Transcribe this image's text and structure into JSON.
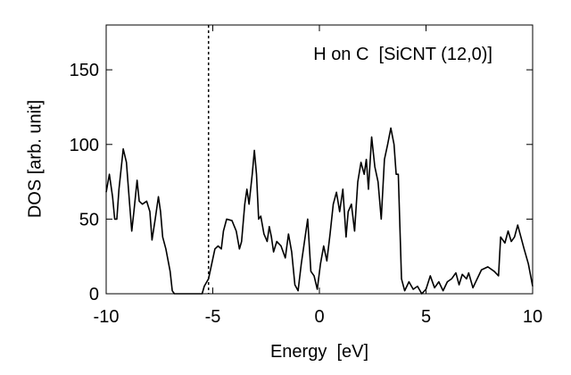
{
  "chart_data": {
    "type": "line",
    "annotation": "H on C  [SiCNT (12,0)]",
    "xlabel": "Energy  [eV]",
    "ylabel": "DOS [arb. unit]",
    "xlim": [
      -10,
      10
    ],
    "ylim": [
      0,
      180
    ],
    "xticks": [
      -10,
      -5,
      0,
      5,
      10
    ],
    "yticks": [
      0,
      50,
      100,
      150
    ],
    "vline": -5.2,
    "series": [
      {
        "name": "DOS",
        "color": "#000000",
        "x": [
          -10,
          -9.85,
          -9.7,
          -9.6,
          -9.5,
          -9.4,
          -9.2,
          -9.05,
          -8.9,
          -8.8,
          -8.7,
          -8.55,
          -8.45,
          -8.3,
          -8.1,
          -7.95,
          -7.85,
          -7.7,
          -7.55,
          -7.45,
          -7.35,
          -7.2,
          -7.0,
          -6.9,
          -6.8,
          -6.0,
          -5.5,
          -5.4,
          -5.2,
          -5.05,
          -4.9,
          -4.75,
          -4.6,
          -4.5,
          -4.35,
          -4.1,
          -3.9,
          -3.75,
          -3.65,
          -3.5,
          -3.4,
          -3.3,
          -3.15,
          -3.05,
          -2.95,
          -2.85,
          -2.75,
          -2.6,
          -2.45,
          -2.35,
          -2.25,
          -2.15,
          -2.0,
          -1.8,
          -1.6,
          -1.45,
          -1.3,
          -1.15,
          -1.0,
          -0.85,
          -0.7,
          -0.55,
          -0.4,
          -0.25,
          -0.1,
          0.05,
          0.2,
          0.35,
          0.5,
          0.65,
          0.8,
          0.95,
          1.1,
          1.25,
          1.35,
          1.5,
          1.65,
          1.8,
          1.95,
          2.1,
          2.2,
          2.3,
          2.45,
          2.6,
          2.75,
          2.9,
          3.05,
          3.2,
          3.35,
          3.5,
          3.6,
          3.7,
          3.85,
          4.0,
          4.2,
          4.4,
          4.6,
          4.8,
          5.0,
          5.2,
          5.4,
          5.6,
          5.8,
          6.0,
          6.2,
          6.4,
          6.55,
          6.7,
          6.9,
          7.0,
          7.2,
          7.4,
          7.6,
          7.9,
          8.2,
          8.4,
          8.5,
          8.7,
          8.85,
          9.0,
          9.15,
          9.3,
          9.45,
          9.6,
          9.8,
          10
        ],
        "values": [
          68,
          80,
          65,
          50,
          50,
          70,
          97,
          88,
          60,
          42,
          55,
          76,
          62,
          60,
          62,
          55,
          36,
          50,
          65,
          55,
          38,
          30,
          15,
          2,
          0,
          0,
          0,
          5,
          10,
          20,
          30,
          32,
          30,
          42,
          50,
          49,
          42,
          30,
          35,
          60,
          70,
          60,
          80,
          96,
          80,
          50,
          52,
          40,
          35,
          45,
          38,
          28,
          35,
          32,
          24,
          40,
          28,
          6,
          2,
          20,
          35,
          50,
          15,
          12,
          3,
          20,
          32,
          22,
          40,
          60,
          68,
          55,
          70,
          38,
          55,
          60,
          42,
          75,
          88,
          80,
          90,
          70,
          105,
          85,
          75,
          50,
          90,
          100,
          111,
          100,
          80,
          80,
          10,
          2,
          8,
          3,
          5,
          0,
          3,
          12,
          4,
          8,
          2,
          8,
          10,
          14,
          6,
          13,
          10,
          14,
          4,
          10,
          16,
          18,
          15,
          12,
          38,
          34,
          42,
          35,
          38,
          46,
          38,
          30,
          20,
          5
        ]
      }
    ]
  }
}
